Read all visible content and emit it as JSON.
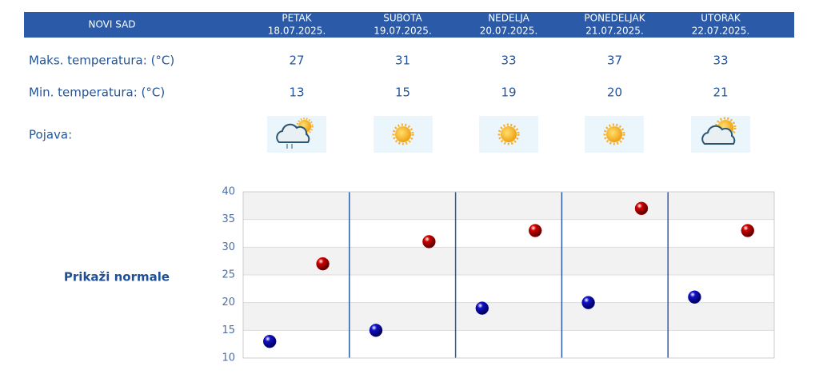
{
  "table": {
    "location": "NOVI SAD",
    "days": [
      {
        "name": "PETAK",
        "date": "18.07.2025."
      },
      {
        "name": "SUBOTA",
        "date": "19.07.2025."
      },
      {
        "name": "NEDELJA",
        "date": "20.07.2025."
      },
      {
        "name": "PONEDELJAK",
        "date": "21.07.2025."
      },
      {
        "name": "UTORAK",
        "date": "22.07.2025."
      }
    ],
    "rows": [
      {
        "label": "Maks. temperatura: (°C)",
        "values": [
          27,
          31,
          33,
          37,
          33
        ]
      },
      {
        "label": "Min. temperatura: (°C)",
        "values": [
          13,
          15,
          19,
          20,
          21
        ]
      },
      {
        "label": "Pojava:"
      }
    ]
  },
  "link": "Prikaži normale",
  "chart_data": {
    "type": "scatter",
    "ylim": [
      10,
      40
    ],
    "yticks": [
      10,
      15,
      20,
      25,
      30,
      35,
      40
    ],
    "grid": true,
    "series": [
      {
        "color": "#1010c8",
        "values": [
          13,
          15,
          19,
          20,
          21
        ]
      },
      {
        "color": "#d00000",
        "values": [
          27,
          31,
          33,
          37,
          33
        ]
      }
    ]
  }
}
